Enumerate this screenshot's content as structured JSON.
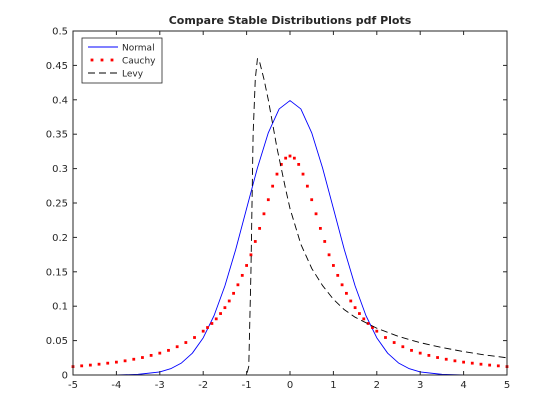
{
  "chart_data": {
    "type": "line",
    "title": "Compare Stable Distributions pdf Plots",
    "xlabel": "",
    "ylabel": "",
    "xlim": [
      -5,
      5
    ],
    "ylim": [
      0,
      0.5
    ],
    "xticks": [
      -5,
      -4,
      -3,
      -2,
      -1,
      0,
      1,
      2,
      3,
      4,
      5
    ],
    "yticks": [
      0,
      0.05,
      0.1,
      0.15,
      0.2,
      0.25,
      0.3,
      0.35,
      0.4,
      0.45,
      0.5
    ],
    "grid": false,
    "legend": {
      "placement": "top-left"
    },
    "series": [
      {
        "name": "Normal",
        "color": "#0000ff",
        "style": "solid",
        "x": [
          -5,
          -4,
          -3.5,
          -3,
          -2.75,
          -2.5,
          -2.25,
          -2,
          -1.75,
          -1.5,
          -1.25,
          -1,
          -0.75,
          -0.5,
          -0.25,
          0,
          0.25,
          0.5,
          0.75,
          1,
          1.25,
          1.5,
          1.75,
          2,
          2.25,
          2.5,
          2.75,
          3,
          3.5,
          4,
          5
        ],
        "y": [
          0,
          0.0001,
          0.0009,
          0.0044,
          0.0091,
          0.0175,
          0.0317,
          0.054,
          0.0863,
          0.1295,
          0.1826,
          0.242,
          0.3011,
          0.3521,
          0.3867,
          0.3989,
          0.3867,
          0.3521,
          0.3011,
          0.242,
          0.1826,
          0.1295,
          0.0863,
          0.054,
          0.0317,
          0.0175,
          0.0091,
          0.0044,
          0.0009,
          0.0001,
          0
        ]
      },
      {
        "name": "Cauchy",
        "color": "#ff0000",
        "style": "dotted",
        "x": [
          -5,
          -4.8,
          -4.6,
          -4.4,
          -4.2,
          -4,
          -3.8,
          -3.6,
          -3.4,
          -3.2,
          -3,
          -2.8,
          -2.6,
          -2.4,
          -2.2,
          -2,
          -1.9,
          -1.8,
          -1.7,
          -1.6,
          -1.5,
          -1.4,
          -1.3,
          -1.2,
          -1.1,
          -1,
          -0.9,
          -0.8,
          -0.7,
          -0.6,
          -0.5,
          -0.4,
          -0.3,
          -0.2,
          -0.1,
          0,
          0.1,
          0.2,
          0.3,
          0.4,
          0.5,
          0.6,
          0.7,
          0.8,
          0.9,
          1,
          1.1,
          1.2,
          1.3,
          1.4,
          1.5,
          1.6,
          1.7,
          1.8,
          1.9,
          2,
          2.2,
          2.4,
          2.6,
          2.8,
          3,
          3.2,
          3.4,
          3.6,
          3.8,
          4,
          4.2,
          4.4,
          4.6,
          4.8,
          5
        ],
        "y": [
          0.0122,
          0.0133,
          0.0144,
          0.0157,
          0.0172,
          0.0187,
          0.0206,
          0.0229,
          0.0254,
          0.0285,
          0.0318,
          0.0358,
          0.0411,
          0.0472,
          0.0545,
          0.0637,
          0.069,
          0.0749,
          0.0816,
          0.0893,
          0.0979,
          0.1076,
          0.1187,
          0.1311,
          0.1448,
          0.1592,
          0.1747,
          0.1941,
          0.2131,
          0.2343,
          0.2548,
          0.2745,
          0.292,
          0.3061,
          0.3152,
          0.3183,
          0.3152,
          0.3061,
          0.292,
          0.2745,
          0.2548,
          0.2343,
          0.2131,
          0.1941,
          0.1747,
          0.1592,
          0.1448,
          0.1311,
          0.1187,
          0.1076,
          0.0979,
          0.0893,
          0.0816,
          0.0749,
          0.069,
          0.0637,
          0.0545,
          0.0472,
          0.0411,
          0.0358,
          0.0318,
          0.0285,
          0.0254,
          0.0229,
          0.0206,
          0.0187,
          0.0172,
          0.0157,
          0.0144,
          0.0133,
          0.0122
        ]
      },
      {
        "name": "Levy",
        "color": "#000000",
        "style": "dashed",
        "x": [
          -5,
          -1.05,
          -1,
          -0.95,
          -0.9,
          -0.85,
          -0.8,
          -0.75,
          -0.7,
          -0.6,
          -0.5,
          -0.4,
          -0.3,
          -0.2,
          -0.1,
          0,
          0.25,
          0.5,
          0.75,
          1,
          1.25,
          1.5,
          2,
          2.5,
          3,
          3.5,
          4,
          4.5,
          5
        ],
        "y": [
          0,
          0,
          0,
          0.0125,
          0.15,
          0.35,
          0.43,
          0.46,
          0.455,
          0.43,
          0.4,
          0.365,
          0.33,
          0.3,
          0.27,
          0.242,
          0.19,
          0.155,
          0.13,
          0.11,
          0.095,
          0.084,
          0.068,
          0.056,
          0.047,
          0.04,
          0.034,
          0.029,
          0.025
        ]
      }
    ]
  }
}
